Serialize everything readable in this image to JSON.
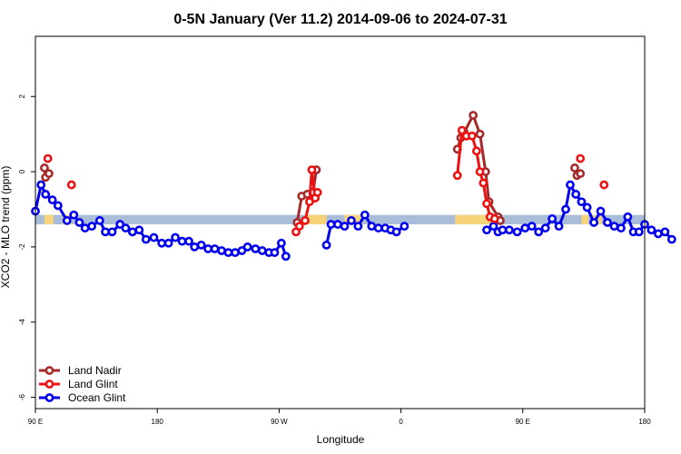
{
  "chart_data": {
    "type": "line",
    "title": "0-5N January (Ver 11.2)   2014-09-06 to 2024-07-31",
    "xlabel": "Longitude",
    "ylabel": "XCO2 - MLO trend (ppm)",
    "xlim": [
      -90,
      180
    ],
    "ylim": [
      -6.3,
      3.6
    ],
    "x_ticks": [
      {
        "value": -90,
        "label": "90 E"
      },
      {
        "value": -36,
        "label": "180"
      },
      {
        "value": 18,
        "label": "90 W"
      },
      {
        "value": 72,
        "label": "0"
      },
      {
        "value": 126,
        "label": "90 E"
      },
      {
        "value": 180,
        "label": "180"
      }
    ],
    "y_ticks": [
      2,
      0,
      -2,
      -4,
      -6
    ],
    "grid": false,
    "legend_position": "bottom-left",
    "surface_bar": {
      "y_range": [
        -1.4,
        -1.15
      ],
      "ocean_color": "#a9bcd8",
      "land_color": "#f7d47a",
      "land_segments": [
        [
          -86,
          -82
        ],
        [
          -78,
          -74
        ],
        [
          30,
          39
        ],
        [
          47,
          55
        ],
        [
          96,
          114
        ],
        [
          152,
          155
        ],
        [
          157,
          161
        ],
        [
          262,
          265
        ],
        [
          265,
          270
        ]
      ]
    },
    "series": [
      {
        "name": "Land Nadir",
        "color": "#a52a2a",
        "segments": [
          [
            [
              -86,
              0.1
            ],
            [
              -85.5,
              -0.15
            ],
            [
              -84,
              -0.05
            ]
          ],
          [
            [
              26,
              -1.35
            ],
            [
              28,
              -0.65
            ],
            [
              30.5,
              -0.6
            ],
            [
              33,
              -0.55
            ],
            [
              34.5,
              0.05
            ]
          ],
          [
            [
              97,
              0.6
            ],
            [
              98.5,
              0.9
            ],
            [
              100,
              1.05
            ],
            [
              104,
              1.5
            ],
            [
              107,
              1.0
            ],
            [
              109.5,
              0.0
            ],
            [
              111,
              -0.8
            ],
            [
              115,
              -1.2
            ],
            [
              116,
              -1.3
            ]
          ],
          [
            [
              149,
              0.1
            ],
            [
              150,
              -0.1
            ],
            [
              151.5,
              -0.05
            ]
          ]
        ]
      },
      {
        "name": "Land Glint",
        "color": "#ee1111",
        "segments": [
          [
            [
              -84.5,
              0.35
            ]
          ],
          [
            [
              -74,
              -0.35
            ]
          ],
          [
            [
              25.5,
              -1.6
            ],
            [
              27,
              -1.45
            ],
            [
              29.5,
              -1.3
            ],
            [
              31.5,
              -0.8
            ],
            [
              32.5,
              0.05
            ],
            [
              34,
              -0.7
            ],
            [
              35,
              -0.55
            ]
          ],
          [
            [
              97,
              -0.1
            ],
            [
              99,
              1.1
            ],
            [
              101,
              0.95
            ],
            [
              103.5,
              0.95
            ],
            [
              105.5,
              0.55
            ],
            [
              107,
              0.0
            ],
            [
              108.5,
              -0.3
            ],
            [
              110,
              -0.85
            ],
            [
              111.5,
              -1.2
            ],
            [
              113.5,
              -1.25
            ]
          ],
          [
            [
              151.5,
              0.35
            ]
          ],
          [
            [
              162,
              -0.35
            ]
          ]
        ]
      },
      {
        "name": "Ocean Glint",
        "color": "#0000ee",
        "segments": [
          [
            [
              -90,
              -1.05
            ],
            [
              -87.5,
              -0.35
            ],
            [
              -85.5,
              -0.6
            ],
            [
              -82.5,
              -0.75
            ],
            [
              -80,
              -0.9
            ],
            [
              -76,
              -1.3
            ],
            [
              -73,
              -1.15
            ],
            [
              -70.5,
              -1.35
            ],
            [
              -68,
              -1.5
            ],
            [
              -65,
              -1.45
            ],
            [
              -61.5,
              -1.3
            ],
            [
              -59,
              -1.6
            ],
            [
              -56,
              -1.6
            ],
            [
              -52.5,
              -1.4
            ],
            [
              -50,
              -1.5
            ],
            [
              -47,
              -1.6
            ],
            [
              -44,
              -1.55
            ],
            [
              -41,
              -1.8
            ],
            [
              -37.5,
              -1.75
            ],
            [
              -34,
              -1.9
            ],
            [
              -31,
              -1.9
            ],
            [
              -28,
              -1.75
            ],
            [
              -25,
              -1.85
            ],
            [
              -22,
              -1.85
            ],
            [
              -19.5,
              -2.0
            ],
            [
              -16.5,
              -1.95
            ],
            [
              -13.5,
              -2.05
            ],
            [
              -10.5,
              -2.05
            ],
            [
              -7.5,
              -2.1
            ],
            [
              -4.5,
              -2.15
            ],
            [
              -1.5,
              -2.15
            ],
            [
              1.5,
              -2.1
            ],
            [
              4,
              -2.0
            ],
            [
              7.5,
              -2.05
            ],
            [
              10.5,
              -2.1
            ],
            [
              13.5,
              -2.15
            ],
            [
              16,
              -2.15
            ],
            [
              19,
              -1.9
            ],
            [
              21,
              -2.25
            ]
          ],
          [
            [
              39,
              -1.95
            ],
            [
              41,
              -1.4
            ],
            [
              44,
              -1.4
            ],
            [
              47,
              -1.45
            ],
            [
              50,
              -1.3
            ],
            [
              53,
              -1.45
            ],
            [
              56,
              -1.15
            ],
            [
              59,
              -1.45
            ],
            [
              62,
              -1.5
            ],
            [
              65,
              -1.5
            ],
            [
              67.5,
              -1.55
            ],
            [
              70,
              -1.6
            ],
            [
              73.5,
              -1.45
            ]
          ],
          [
            [
              110,
              -1.55
            ],
            [
              113,
              -1.45
            ],
            [
              115,
              -1.6
            ],
            [
              117,
              -1.55
            ],
            [
              120,
              -1.55
            ],
            [
              123.5,
              -1.6
            ],
            [
              127,
              -1.5
            ],
            [
              130,
              -1.45
            ],
            [
              133,
              -1.6
            ],
            [
              136,
              -1.5
            ],
            [
              139,
              -1.25
            ],
            [
              142,
              -1.45
            ],
            [
              145,
              -1.0
            ],
            [
              147,
              -0.35
            ],
            [
              149.5,
              -0.6
            ],
            [
              152,
              -0.8
            ],
            [
              154.5,
              -0.95
            ],
            [
              157.5,
              -1.35
            ],
            [
              160.5,
              -1.05
            ],
            [
              163.5,
              -1.35
            ],
            [
              166.5,
              -1.45
            ],
            [
              169.5,
              -1.5
            ],
            [
              172.5,
              -1.2
            ],
            [
              175,
              -1.6
            ],
            [
              177.5,
              -1.6
            ],
            [
              180,
              -1.4
            ],
            [
              183,
              -1.55
            ],
            [
              186,
              -1.65
            ],
            [
              189,
              -1.6
            ],
            [
              192,
              -1.8
            ]
          ]
        ]
      }
    ]
  }
}
